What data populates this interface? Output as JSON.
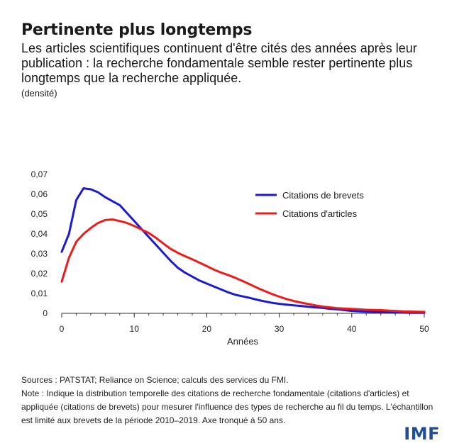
{
  "title": "Pertinente plus longtemps",
  "subtitle": "Les articles scientifiques continuent d'être cités des années après leur publication : la recherche fondamentale semble rester pertinente plus longtemps que la recherche appliquée.",
  "unit": "(densité)",
  "chart_data": {
    "type": "line",
    "xlabel": "Années",
    "ylabel": "densité",
    "xlim": [
      0,
      50
    ],
    "ylim": [
      0,
      0.07
    ],
    "xticks": [
      0,
      10,
      20,
      30,
      40,
      50
    ],
    "yticks": [
      0,
      0.01,
      0.02,
      0.03,
      0.04,
      0.05,
      0.06,
      0.07
    ],
    "ytick_labels": [
      "0",
      "0,01",
      "0,02",
      "0,03",
      "0,04",
      "0,05",
      "0,06",
      "0,07"
    ],
    "legend_position": "top-right",
    "series": [
      {
        "name": "Citations de brevets",
        "color": "#1b1bd1",
        "x": [
          0,
          1,
          2,
          3,
          4,
          5,
          6,
          7,
          8,
          9,
          10,
          11,
          12,
          13,
          14,
          15,
          16,
          17,
          18,
          19,
          20,
          21,
          22,
          23,
          24,
          25,
          26,
          27,
          28,
          29,
          30,
          31,
          32,
          33,
          34,
          35,
          36,
          37,
          38,
          39,
          40,
          41,
          42,
          43,
          44,
          45,
          46,
          47,
          48,
          49,
          50
        ],
        "values": [
          0.031,
          0.04,
          0.057,
          0.063,
          0.0625,
          0.061,
          0.0585,
          0.0565,
          0.0545,
          0.0505,
          0.0465,
          0.0425,
          0.0385,
          0.0345,
          0.0305,
          0.0265,
          0.023,
          0.0205,
          0.0185,
          0.0165,
          0.015,
          0.0135,
          0.012,
          0.0105,
          0.0093,
          0.0085,
          0.0077,
          0.0068,
          0.006,
          0.0053,
          0.0048,
          0.0044,
          0.004,
          0.0037,
          0.0033,
          0.003,
          0.0027,
          0.0023,
          0.002,
          0.0016,
          0.0012,
          0.001,
          0.0008,
          0.0007,
          0.0006,
          0.0005,
          0.0004,
          0.0004,
          0.0003,
          0.0003,
          0.0003
        ]
      },
      {
        "name": "Citations d'articles",
        "color": "#ec1c1c",
        "x": [
          0,
          1,
          2,
          3,
          4,
          5,
          6,
          7,
          8,
          9,
          10,
          11,
          12,
          13,
          14,
          15,
          16,
          17,
          18,
          19,
          20,
          21,
          22,
          23,
          24,
          25,
          26,
          27,
          28,
          29,
          30,
          31,
          32,
          33,
          34,
          35,
          36,
          37,
          38,
          39,
          40,
          41,
          42,
          43,
          44,
          45,
          46,
          47,
          48,
          49,
          50
        ],
        "values": [
          0.016,
          0.028,
          0.036,
          0.04,
          0.043,
          0.0455,
          0.047,
          0.0473,
          0.0465,
          0.0455,
          0.044,
          0.0422,
          0.0405,
          0.038,
          0.0352,
          0.0325,
          0.0305,
          0.0288,
          0.0272,
          0.0255,
          0.0238,
          0.022,
          0.0205,
          0.0192,
          0.0178,
          0.0162,
          0.0145,
          0.0128,
          0.0112,
          0.0097,
          0.0084,
          0.0072,
          0.0062,
          0.0054,
          0.0047,
          0.004,
          0.0034,
          0.003,
          0.0026,
          0.0024,
          0.0022,
          0.002,
          0.0018,
          0.0017,
          0.0016,
          0.0014,
          0.0012,
          0.001,
          0.0009,
          0.0008,
          0.0007
        ]
      }
    ]
  },
  "footer": {
    "sources": "Sources : PATSTAT; Reliance on Science; calculs des services du FMI.",
    "note": "Note : Indique la distribution temporelle des citations de recherche fondamentale (citations d'articles) et appliquée (citations de brevets) pour mesurer l'influence des types de recherche au fil du temps. L'échantillon est limité aux brevets de la période 2010–2019. Axe tronqué à 50 ans."
  },
  "logo": "IMF"
}
